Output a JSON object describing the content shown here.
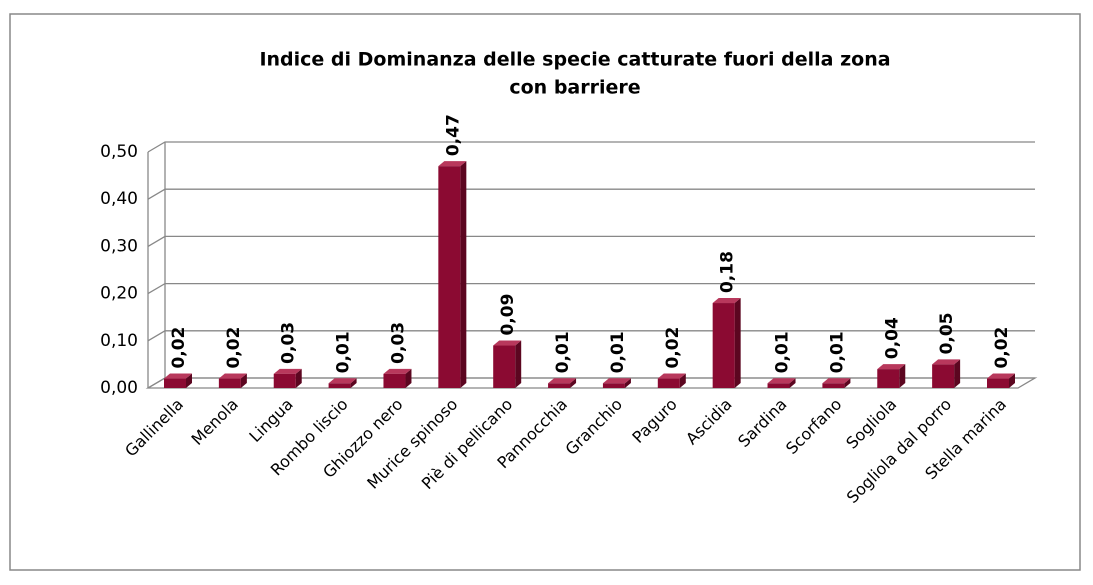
{
  "chart_data": {
    "type": "bar3d",
    "title": [
      "Indice di Dominanza delle specie catturate fuori della zona",
      "con barriere"
    ],
    "categories": [
      "Gallinella",
      "Menola",
      "Lingua",
      "Rombo liscio",
      "Ghiozzo nero",
      "Murice spinoso",
      "Piè di pellicano",
      "Pannocchia",
      "Granchio",
      "Paguro",
      "Ascidia",
      "Sardina",
      "Scorfano",
      "Sogliola",
      "Sogliola dal porro",
      "Stella marina"
    ],
    "values": [
      0.02,
      0.02,
      0.03,
      0.01,
      0.03,
      0.47,
      0.09,
      0.01,
      0.01,
      0.02,
      0.18,
      0.01,
      0.01,
      0.04,
      0.05,
      0.02
    ],
    "value_labels": [
      "0,02",
      "0,02",
      "0,03",
      "0,01",
      "0,03",
      "0,47",
      "0,09",
      "0,01",
      "0,01",
      "0,02",
      "0,18",
      "0,01",
      "0,01",
      "0,04",
      "0,05",
      "0,02"
    ],
    "color": "#8b0a32",
    "ylim": [
      0,
      0.5
    ],
    "yticks": [
      {
        "value": 0,
        "label": "0,00"
      },
      {
        "value": 0.1,
        "label": "0,10"
      },
      {
        "value": 0.2,
        "label": "0,20"
      },
      {
        "value": 0.3,
        "label": "0,30"
      },
      {
        "value": 0.4,
        "label": "0,40"
      },
      {
        "value": 0.5,
        "label": "0,50"
      }
    ],
    "grid": true
  }
}
